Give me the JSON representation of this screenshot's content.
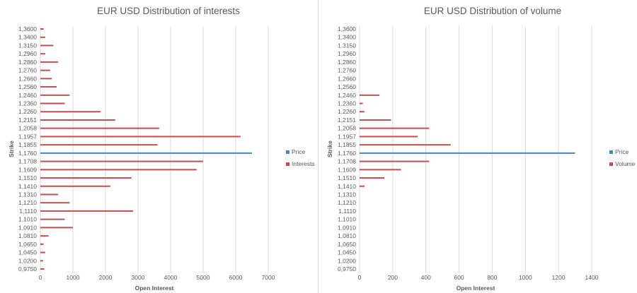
{
  "colors": {
    "price": "#4f81bd",
    "series": "#c0504d",
    "grid": "#d9d9d9",
    "text": "#595959"
  },
  "strike_labels": [
    "0,9750",
    "1,0200",
    "1,0450",
    "1,0650",
    "1,0810",
    "1,0910",
    "1,1010",
    "1,1110",
    "1,1210",
    "1,1310",
    "1,1410",
    "1,1510",
    "1,1609",
    "1,1708",
    "1,1760",
    "1,1855",
    "1,1957",
    "1,2058",
    "1,2151",
    "1,2260",
    "1,2360",
    "1,2460",
    "1,2560",
    "1,2660",
    "1,2760",
    "1,2860",
    "1,2960",
    "1,3150",
    "1,3400",
    "1,3600"
  ],
  "chart_data": [
    {
      "type": "bar",
      "orientation": "horizontal",
      "title": "EUR USD Distribution of interests",
      "xlabel": "Open Interest",
      "ylabel": "Strike",
      "xlim": [
        0,
        7000
      ],
      "xticks": [
        0,
        1000,
        2000,
        3000,
        4000,
        5000,
        6000,
        7000
      ],
      "grid": true,
      "legend_position": "right",
      "price": {
        "name": "Price",
        "strike": "1,1760",
        "value": 6500
      },
      "series": {
        "name": "Interests",
        "bars": [
          {
            "strike": "0,9750",
            "value": 120
          },
          {
            "strike": "1,0200",
            "value": 80
          },
          {
            "strike": "1,0450",
            "value": 150
          },
          {
            "strike": "1,0650",
            "value": 100
          },
          {
            "strike": "1,0810",
            "value": 250
          },
          {
            "strike": "1,0910",
            "value": 1000
          },
          {
            "strike": "1,1010",
            "value": 750
          },
          {
            "strike": "1,1110",
            "value": 2850
          },
          {
            "strike": "1,1210",
            "value": 900
          },
          {
            "strike": "1,1310",
            "value": 550
          },
          {
            "strike": "1,1410",
            "value": 2150
          },
          {
            "strike": "1,1510",
            "value": 2800
          },
          {
            "strike": "1,1609",
            "value": 4800
          },
          {
            "strike": "1,1708",
            "value": 5000
          },
          {
            "strike": "1,1855",
            "value": 3600
          },
          {
            "strike": "1,1957",
            "value": 6150
          },
          {
            "strike": "1,2058",
            "value": 3650
          },
          {
            "strike": "1,2151",
            "value": 2300
          },
          {
            "strike": "1,2260",
            "value": 1850
          },
          {
            "strike": "1,2360",
            "value": 750
          },
          {
            "strike": "1,2460",
            "value": 900
          },
          {
            "strike": "1,2560",
            "value": 500
          },
          {
            "strike": "1,2660",
            "value": 350
          },
          {
            "strike": "1,2760",
            "value": 300
          },
          {
            "strike": "1,2860",
            "value": 550
          },
          {
            "strike": "1,2960",
            "value": 150
          },
          {
            "strike": "1,3150",
            "value": 400
          },
          {
            "strike": "1,3400",
            "value": 150
          },
          {
            "strike": "1,3600",
            "value": 100
          }
        ]
      },
      "legend": [
        "Price",
        "Interests"
      ]
    },
    {
      "type": "bar",
      "orientation": "horizontal",
      "title": "EUR USD Distribution of volume",
      "xlabel": "Open Interest",
      "ylabel": "Strike",
      "xlim": [
        0,
        1400
      ],
      "xticks": [
        0,
        200,
        400,
        600,
        800,
        1000,
        1200,
        1400
      ],
      "grid": true,
      "legend_position": "right",
      "price": {
        "name": "Price",
        "strike": "1,1760",
        "value": 1300
      },
      "series": {
        "name": "Volume",
        "bars": [
          {
            "strike": "1,1410",
            "value": 30
          },
          {
            "strike": "1,1510",
            "value": 150
          },
          {
            "strike": "1,1609",
            "value": 250
          },
          {
            "strike": "1,1708",
            "value": 420
          },
          {
            "strike": "1,1855",
            "value": 550
          },
          {
            "strike": "1,1957",
            "value": 350
          },
          {
            "strike": "1,2058",
            "value": 420
          },
          {
            "strike": "1,2151",
            "value": 190
          },
          {
            "strike": "1,2260",
            "value": 30
          },
          {
            "strike": "1,2360",
            "value": 20
          },
          {
            "strike": "1,2460",
            "value": 120
          }
        ]
      },
      "legend": [
        "Price",
        "Volume"
      ]
    }
  ]
}
